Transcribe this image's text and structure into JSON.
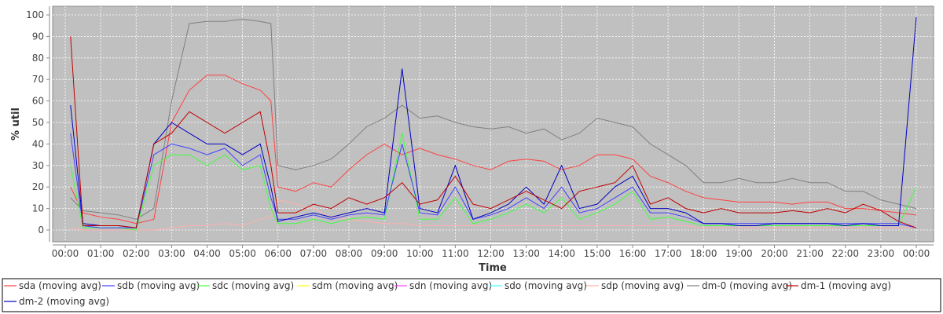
{
  "chart_data": {
    "type": "line",
    "title": "",
    "xlabel": "Time",
    "ylabel": "% util",
    "ylim": [
      -2,
      104
    ],
    "xlim_hours": [
      -0.35,
      24.5
    ],
    "grid": true,
    "legend_placement": "bottom",
    "y_ticks": [
      "0",
      "10",
      "20",
      "30",
      "40",
      "50",
      "60",
      "70",
      "80",
      "90",
      "100"
    ],
    "x_ticks": [
      "00:00",
      "01:00",
      "02:00",
      "03:00",
      "04:00",
      "05:00",
      "06:00",
      "07:00",
      "08:00",
      "09:00",
      "10:00",
      "11:00",
      "12:00",
      "13:00",
      "14:00",
      "15:00",
      "16:00",
      "17:00",
      "18:00",
      "19:00",
      "20:00",
      "21:00",
      "22:00",
      "23:00",
      "00:00"
    ],
    "x_hours": [
      0.15,
      0.5,
      1,
      1.5,
      2,
      2.5,
      3,
      3.5,
      4,
      4.5,
      5,
      5.5,
      5.8,
      6,
      6.5,
      7,
      7.5,
      8,
      8.5,
      9,
      9.5,
      10,
      10.5,
      11,
      11.5,
      12,
      12.5,
      13,
      13.5,
      14,
      14.5,
      15,
      15.5,
      16,
      16.5,
      17,
      17.5,
      18,
      18.5,
      19,
      19.5,
      20,
      20.5,
      21,
      21.5,
      22,
      22.5,
      23,
      23.5,
      24
    ],
    "series": [
      {
        "name": "sda (moving avg)",
        "color": "#ff4040",
        "values": [
          20,
          8,
          6,
          5,
          3,
          5,
          50,
          65,
          72,
          72,
          68,
          65,
          60,
          20,
          18,
          22,
          20,
          28,
          35,
          40,
          35,
          38,
          35,
          33,
          30,
          28,
          32,
          33,
          32,
          28,
          30,
          35,
          35,
          33,
          25,
          22,
          18,
          15,
          14,
          13,
          13,
          13,
          12,
          13,
          13,
          10,
          10,
          9,
          8,
          7
        ]
      },
      {
        "name": "sdb (moving avg)",
        "color": "#4040ff",
        "values": [
          45,
          2,
          1,
          1,
          1,
          35,
          40,
          38,
          35,
          38,
          30,
          35,
          15,
          5,
          5,
          7,
          5,
          7,
          8,
          7,
          40,
          8,
          7,
          20,
          5,
          7,
          10,
          15,
          10,
          20,
          8,
          10,
          15,
          20,
          8,
          8,
          6,
          3,
          3,
          3,
          3,
          3,
          3,
          3,
          3,
          3,
          3,
          3,
          3,
          1
        ]
      },
      {
        "name": "sdc (moving avg)",
        "color": "#40ff40",
        "values": [
          30,
          1,
          1,
          1,
          0,
          30,
          35,
          35,
          30,
          35,
          28,
          30,
          10,
          3,
          3,
          5,
          3,
          5,
          6,
          5,
          45,
          5,
          5,
          15,
          3,
          5,
          8,
          12,
          8,
          15,
          5,
          8,
          12,
          18,
          5,
          6,
          4,
          2,
          2,
          2,
          2,
          2,
          2,
          2,
          2,
          2,
          2,
          2,
          2,
          20
        ]
      },
      {
        "name": "sdm (moving avg)",
        "color": "#ffff00",
        "values": []
      },
      {
        "name": "sdn (moving avg)",
        "color": "#ff40ff",
        "values": []
      },
      {
        "name": "sdo (moving avg)",
        "color": "#40ffff",
        "values": []
      },
      {
        "name": "sdp (moving avg)",
        "color": "#ffb0b0",
        "values": [
          1,
          0,
          0,
          0,
          0,
          0,
          1,
          2,
          2,
          3,
          2,
          5,
          6,
          14,
          12,
          10,
          6,
          5,
          4,
          3,
          3,
          2,
          2,
          2,
          2,
          2,
          2,
          2,
          2,
          2,
          2,
          2,
          2,
          2,
          2,
          2,
          2,
          1,
          1,
          1,
          1,
          1,
          1,
          1,
          1,
          1,
          1,
          1,
          1,
          1
        ]
      },
      {
        "name": "dm-0 (moving avg)",
        "color": "#808080",
        "values": [
          15,
          9,
          8,
          7,
          5,
          10,
          60,
          96,
          97,
          97,
          98,
          97,
          96,
          30,
          28,
          30,
          33,
          40,
          48,
          52,
          58,
          52,
          53,
          50,
          48,
          47,
          48,
          45,
          47,
          42,
          45,
          52,
          50,
          48,
          40,
          35,
          30,
          22,
          22,
          24,
          22,
          22,
          24,
          22,
          22,
          18,
          18,
          14,
          12,
          10
        ]
      },
      {
        "name": "dm-1 (moving avg)",
        "color": "#c00000",
        "values": [
          90,
          2,
          2,
          2,
          1,
          40,
          45,
          55,
          50,
          45,
          50,
          55,
          30,
          8,
          8,
          12,
          10,
          15,
          12,
          15,
          22,
          12,
          14,
          25,
          12,
          10,
          14,
          18,
          14,
          10,
          18,
          20,
          22,
          30,
          12,
          15,
          10,
          8,
          10,
          8,
          8,
          8,
          9,
          8,
          10,
          8,
          12,
          9,
          4,
          1
        ]
      },
      {
        "name": "dm-2 (moving avg)",
        "color": "#0000c0",
        "values": [
          58,
          3,
          2,
          2,
          1,
          40,
          50,
          45,
          40,
          40,
          35,
          40,
          20,
          4,
          6,
          8,
          6,
          8,
          10,
          8,
          75,
          10,
          8,
          30,
          5,
          8,
          12,
          20,
          12,
          30,
          10,
          12,
          20,
          25,
          10,
          10,
          8,
          3,
          3,
          2,
          2,
          3,
          3,
          3,
          3,
          2,
          3,
          2,
          2,
          99
        ]
      }
    ]
  }
}
